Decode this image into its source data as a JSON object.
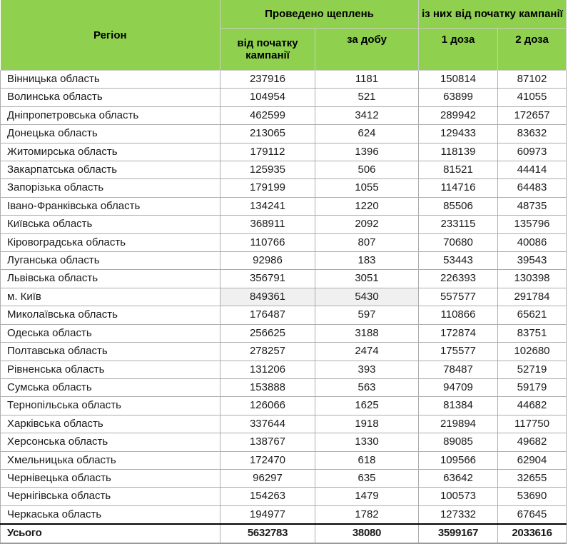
{
  "header": {
    "region": "Регіон",
    "group_vaccinations": "Проведено щеплень",
    "group_since_start": "із них від початку кампанії",
    "col_since_start": "від початку кампанії",
    "col_per_day": "за добу",
    "col_dose1": "1 доза",
    "col_dose2": "2 доза"
  },
  "colors": {
    "header_bg": "#8fd14f",
    "grid_line": "#adadad",
    "highlight_bg": "#f0f0f0",
    "total_top_border": "#000000"
  },
  "table": {
    "rows": [
      {
        "region": "Вінницька область",
        "total_campaign": "237916",
        "per_day": "1181",
        "dose1": "150814",
        "dose2": "87102"
      },
      {
        "region": "Волинська область",
        "total_campaign": "104954",
        "per_day": "521",
        "dose1": "63899",
        "dose2": "41055"
      },
      {
        "region": "Дніпропетровська область",
        "total_campaign": "462599",
        "per_day": "3412",
        "dose1": "289942",
        "dose2": "172657"
      },
      {
        "region": "Донецька область",
        "total_campaign": "213065",
        "per_day": "624",
        "dose1": "129433",
        "dose2": "83632"
      },
      {
        "region": "Житомирська область",
        "total_campaign": "179112",
        "per_day": "1396",
        "dose1": "118139",
        "dose2": "60973"
      },
      {
        "region": "Закарпатська область",
        "total_campaign": "125935",
        "per_day": "506",
        "dose1": "81521",
        "dose2": "44414"
      },
      {
        "region": "Запорізька область",
        "total_campaign": "179199",
        "per_day": "1055",
        "dose1": "114716",
        "dose2": "64483"
      },
      {
        "region": "Івано-Франківська область",
        "total_campaign": "134241",
        "per_day": "1220",
        "dose1": "85506",
        "dose2": "48735"
      },
      {
        "region": "Київська область",
        "total_campaign": "368911",
        "per_day": "2092",
        "dose1": "233115",
        "dose2": "135796"
      },
      {
        "region": "Кіровоградська область",
        "total_campaign": "110766",
        "per_day": "807",
        "dose1": "70680",
        "dose2": "40086"
      },
      {
        "region": "Луганська область",
        "total_campaign": "92986",
        "per_day": "183",
        "dose1": "53443",
        "dose2": "39543"
      },
      {
        "region": "Львівська область",
        "total_campaign": "356791",
        "per_day": "3051",
        "dose1": "226393",
        "dose2": "130398"
      },
      {
        "region": "м. Київ",
        "total_campaign": "849361",
        "per_day": "5430",
        "dose1": "557577",
        "dose2": "291784",
        "highlighted": true
      },
      {
        "region": "Миколаївська область",
        "total_campaign": "176487",
        "per_day": "597",
        "dose1": "110866",
        "dose2": "65621"
      },
      {
        "region": "Одеська область",
        "total_campaign": "256625",
        "per_day": "3188",
        "dose1": "172874",
        "dose2": "83751"
      },
      {
        "region": "Полтавська область",
        "total_campaign": "278257",
        "per_day": "2474",
        "dose1": "175577",
        "dose2": "102680"
      },
      {
        "region": "Рівненська область",
        "total_campaign": "131206",
        "per_day": "393",
        "dose1": "78487",
        "dose2": "52719"
      },
      {
        "region": "Сумська область",
        "total_campaign": "153888",
        "per_day": "563",
        "dose1": "94709",
        "dose2": "59179"
      },
      {
        "region": "Тернопільська область",
        "total_campaign": "126066",
        "per_day": "1625",
        "dose1": "81384",
        "dose2": "44682"
      },
      {
        "region": "Харківська область",
        "total_campaign": "337644",
        "per_day": "1918",
        "dose1": "219894",
        "dose2": "117750"
      },
      {
        "region": "Херсонська область",
        "total_campaign": "138767",
        "per_day": "1330",
        "dose1": "89085",
        "dose2": "49682"
      },
      {
        "region": "Хмельницька область",
        "total_campaign": "172470",
        "per_day": "618",
        "dose1": "109566",
        "dose2": "62904"
      },
      {
        "region": "Чернівецька область",
        "total_campaign": "96297",
        "per_day": "635",
        "dose1": "63642",
        "dose2": "32655"
      },
      {
        "region": "Чернігівська область",
        "total_campaign": "154263",
        "per_day": "1479",
        "dose1": "100573",
        "dose2": "53690"
      },
      {
        "region": "Черкаська область",
        "total_campaign": "194977",
        "per_day": "1782",
        "dose1": "127332",
        "dose2": "67645"
      }
    ],
    "total": {
      "region": "Усього",
      "total_campaign": "5632783",
      "per_day": "38080",
      "dose1": "3599167",
      "dose2": "2033616"
    }
  }
}
